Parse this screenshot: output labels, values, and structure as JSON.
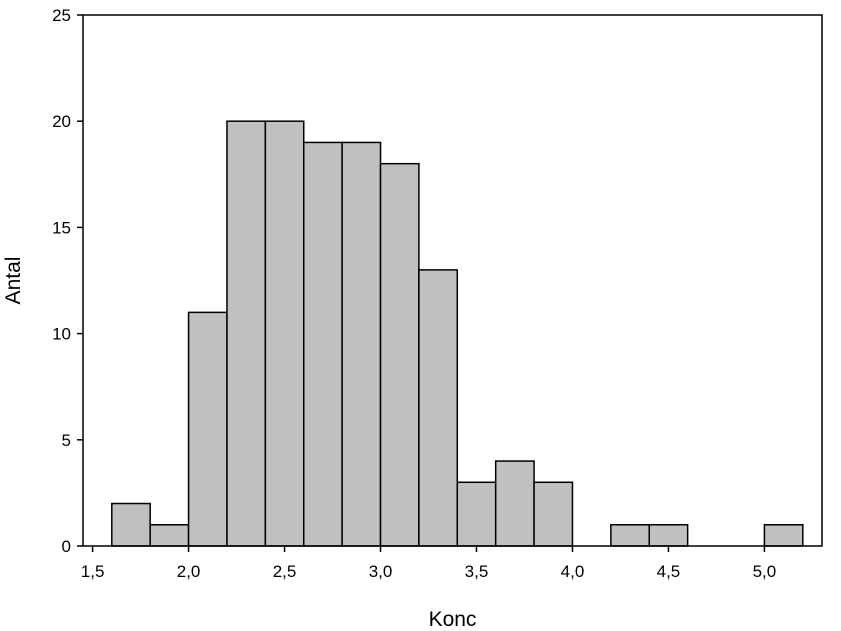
{
  "chart_data": {
    "type": "bar",
    "subtype": "histogram",
    "title": "",
    "xlabel": "Konc",
    "ylabel": "Antal",
    "xlim": [
      1.45,
      5.3
    ],
    "ylim": [
      0,
      25
    ],
    "x_ticks": [
      1.5,
      2.0,
      2.5,
      3.0,
      3.5,
      4.0,
      4.5,
      5.0
    ],
    "x_tick_labels": [
      "1,5",
      "2,0",
      "2,5",
      "3,0",
      "3,5",
      "4,0",
      "4,5",
      "5,0"
    ],
    "y_ticks": [
      0,
      5,
      10,
      15,
      20,
      25
    ],
    "y_tick_labels": [
      "0",
      "5",
      "10",
      "15",
      "20",
      "25"
    ],
    "bin_width": 0.2,
    "bins": [
      {
        "start": 1.6,
        "end": 1.8,
        "count": 2
      },
      {
        "start": 1.8,
        "end": 2.0,
        "count": 1
      },
      {
        "start": 2.0,
        "end": 2.2,
        "count": 11
      },
      {
        "start": 2.2,
        "end": 2.4,
        "count": 20
      },
      {
        "start": 2.4,
        "end": 2.6,
        "count": 20
      },
      {
        "start": 2.6,
        "end": 2.8,
        "count": 19
      },
      {
        "start": 2.8,
        "end": 3.0,
        "count": 19
      },
      {
        "start": 3.0,
        "end": 3.2,
        "count": 18
      },
      {
        "start": 3.2,
        "end": 3.4,
        "count": 13
      },
      {
        "start": 3.4,
        "end": 3.6,
        "count": 3
      },
      {
        "start": 3.6,
        "end": 3.8,
        "count": 4
      },
      {
        "start": 3.8,
        "end": 4.0,
        "count": 3
      },
      {
        "start": 4.2,
        "end": 4.4,
        "count": 1
      },
      {
        "start": 4.4,
        "end": 4.6,
        "count": 1
      },
      {
        "start": 5.0,
        "end": 5.2,
        "count": 1
      }
    ],
    "bar_color": "#c0c0c0",
    "edge_color": "#000000",
    "grid": false,
    "legend": "none"
  }
}
